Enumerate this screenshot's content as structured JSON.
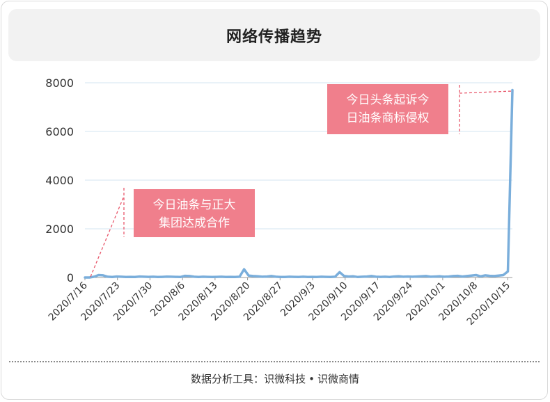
{
  "title": "网络传播趋势",
  "footer": {
    "prefix": "数据分析工具：",
    "brand1": "识微科技",
    "separator": "•",
    "brand2": "识微商情"
  },
  "colors": {
    "line": "#7aaedb",
    "annotation_box": "#f07f8c",
    "annotation_dash": "#e8566a",
    "grid": "#d3e6f2",
    "axis_text": "#333333"
  },
  "chart_data": {
    "type": "line",
    "title": "",
    "xlabel": "",
    "ylabel": "",
    "ylim": [
      0,
      8000
    ],
    "yticks": [
      0,
      2000,
      4000,
      6000,
      8000
    ],
    "xtick_labels": [
      "2020/7/16",
      "2020/7/23",
      "2020/7/30",
      "2020/8/6",
      "2020/8/13",
      "2020/8/20",
      "2020/8/27",
      "2020/9/3",
      "2020/9/10",
      "2020/9/17",
      "2020/9/24",
      "2020/10/1",
      "2020/10/8",
      "2020/10/15"
    ],
    "x_start": "2020/7/16",
    "x_end": "2020/10/16",
    "grid": true,
    "series": [
      {
        "values": [
          0,
          0,
          30,
          100,
          90,
          30,
          20,
          40,
          30,
          20,
          25,
          20,
          40,
          30,
          25,
          30,
          20,
          25,
          35,
          30,
          25,
          20,
          70,
          60,
          30,
          20,
          30,
          25,
          20,
          25,
          30,
          20,
          25,
          20,
          30,
          340,
          80,
          60,
          50,
          30,
          40,
          60,
          30,
          20,
          20,
          30,
          25,
          20,
          30,
          20,
          25,
          20,
          30,
          25,
          20,
          30,
          220,
          60,
          40,
          50,
          20,
          30,
          40,
          60,
          30,
          25,
          30,
          20,
          40,
          50,
          30,
          40,
          30,
          40,
          50,
          60,
          30,
          40,
          50,
          30,
          40,
          60,
          70,
          40,
          60,
          80,
          100,
          50,
          90,
          70,
          60,
          80,
          100,
          250,
          7700
        ]
      }
    ],
    "annotations": [
      {
        "lines": [
          "今日油条与正大",
          "集团达成合作"
        ],
        "date": "2020/7/16"
      },
      {
        "lines": [
          "今日头条起诉今",
          "日油条商标侵权"
        ],
        "date": "2020/10/16"
      }
    ]
  }
}
